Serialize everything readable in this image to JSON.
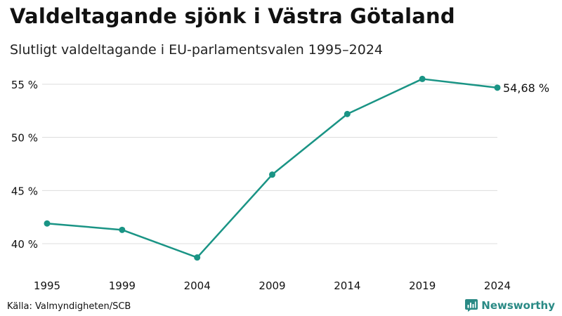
{
  "title": "Valdeltagande sjönk i Västra Götaland",
  "subtitle": "Slutligt valdeltagande i EU-parlamentsvalen 1995–2024",
  "source": "Källa: Valmyndigheten/SCB",
  "brand": "Newsworthy",
  "colors": {
    "line": "#1a9485",
    "grid": "#dcdcdc",
    "text": "#111111",
    "brand": "#2a8a85"
  },
  "chart_data": {
    "type": "line",
    "title": "Valdeltagande sjönk i Västra Götaland",
    "subtitle": "Slutligt valdeltagande i EU-parlamentsvalen 1995–2024",
    "xlabel": "",
    "ylabel": "",
    "categories": [
      "1995",
      "1999",
      "2004",
      "2009",
      "2014",
      "2019",
      "2024"
    ],
    "series": [
      {
        "name": "Valdeltagande",
        "values": [
          41.9,
          41.3,
          38.7,
          46.5,
          52.2,
          55.5,
          54.68
        ]
      }
    ],
    "ylim": [
      38,
      56
    ],
    "yticks": [
      40,
      45,
      50,
      55
    ],
    "ytick_labels": [
      "40 %",
      "45 %",
      "50 %",
      "55 %"
    ],
    "end_label": "54,68 %",
    "grid": true,
    "legend": "none"
  }
}
